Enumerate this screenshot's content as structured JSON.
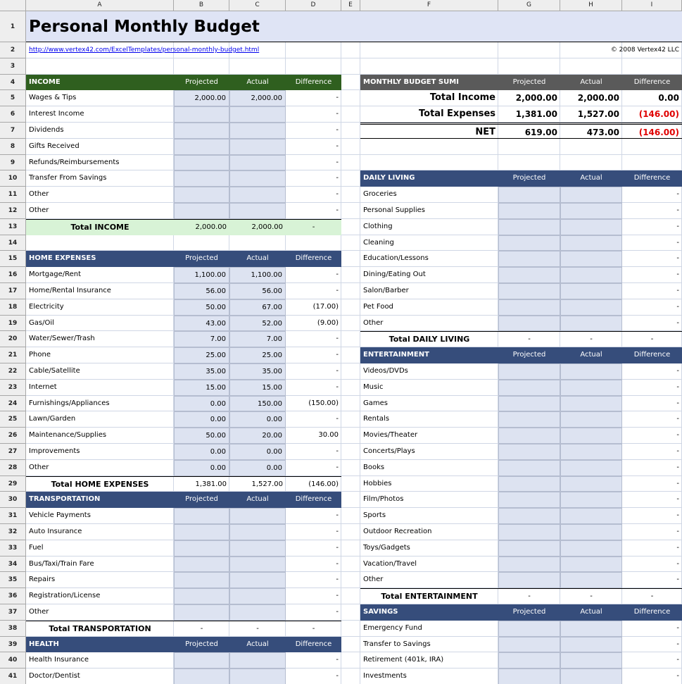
{
  "columns": [
    "A",
    "B",
    "C",
    "D",
    "E",
    "F",
    "G",
    "H",
    "I"
  ],
  "row_numbers": [
    1,
    2,
    3,
    4,
    5,
    6,
    7,
    8,
    9,
    10,
    11,
    12,
    13,
    14,
    15,
    16,
    17,
    18,
    19,
    20,
    21,
    22,
    23,
    24,
    25,
    26,
    27,
    28,
    29,
    30,
    31,
    32,
    33,
    34,
    35,
    36,
    37,
    38,
    39,
    40,
    41
  ],
  "title": "Personal Monthly Budget",
  "link": "http://www.vertex42.com/ExcelTemplates/personal-monthly-budget.html",
  "copyright": "© 2008 Vertex42 LLC",
  "summary": {
    "name": "MONTHLY BUDGET SUMI",
    "headers": [
      "Projected",
      "Actual",
      "Difference"
    ],
    "rows": [
      [
        "Total Income",
        "2,000.00",
        "2,000.00",
        "0.00"
      ],
      [
        "Total Expenses",
        "1,381.00",
        "1,527.00",
        "(146.00)"
      ],
      [
        "NET",
        "619.00",
        "473.00",
        "(146.00)"
      ]
    ]
  },
  "left": [
    {
      "name": "INCOME",
      "headers": [
        "Projected",
        "Actual",
        "Difference"
      ],
      "items": [
        [
          "Wages & Tips",
          "2,000.00",
          "2,000.00",
          "-"
        ],
        [
          "Interest Income",
          null,
          null,
          "-"
        ],
        [
          "Dividends",
          null,
          null,
          "-"
        ],
        [
          "Gifts Received",
          null,
          null,
          "-"
        ],
        [
          "Refunds/Reimbursements",
          null,
          null,
          "-"
        ],
        [
          "Transfer From Savings",
          null,
          null,
          "-"
        ],
        [
          "Other",
          null,
          null,
          "-"
        ],
        [
          "Other",
          null,
          null,
          "-"
        ]
      ],
      "total": [
        "Total INCOME",
        "2,000.00",
        "2,000.00",
        "-"
      ]
    },
    {
      "name": "HOME EXPENSES",
      "headers": [
        "Projected",
        "Actual",
        "Difference"
      ],
      "items": [
        [
          "Mortgage/Rent",
          "1,100.00",
          "1,100.00",
          "-"
        ],
        [
          "Home/Rental Insurance",
          "56.00",
          "56.00",
          "-"
        ],
        [
          "Electricity",
          "50.00",
          "67.00",
          "(17.00)"
        ],
        [
          "Gas/Oil",
          "43.00",
          "52.00",
          "(9.00)"
        ],
        [
          "Water/Sewer/Trash",
          "7.00",
          "7.00",
          "-"
        ],
        [
          "Phone",
          "25.00",
          "25.00",
          "-"
        ],
        [
          "Cable/Satellite",
          "35.00",
          "35.00",
          "-"
        ],
        [
          "Internet",
          "15.00",
          "15.00",
          "-"
        ],
        [
          "Furnishings/Appliances",
          "0.00",
          "150.00",
          "(150.00)"
        ],
        [
          "Lawn/Garden",
          "0.00",
          "0.00",
          "-"
        ],
        [
          "Maintenance/Supplies",
          "50.00",
          "20.00",
          "30.00"
        ],
        [
          "Improvements",
          "0.00",
          "0.00",
          "-"
        ],
        [
          "Other",
          "0.00",
          "0.00",
          "-"
        ]
      ],
      "total": [
        "Total HOME EXPENSES",
        "1,381.00",
        "1,527.00",
        "(146.00)"
      ]
    },
    {
      "name": "TRANSPORTATION",
      "headers": [
        "Projected",
        "Actual",
        "Difference"
      ],
      "items": [
        [
          "Vehicle Payments",
          null,
          null,
          "-"
        ],
        [
          "Auto Insurance",
          null,
          null,
          "-"
        ],
        [
          "Fuel",
          null,
          null,
          "-"
        ],
        [
          "Bus/Taxi/Train Fare",
          null,
          null,
          "-"
        ],
        [
          "Repairs",
          null,
          null,
          "-"
        ],
        [
          "Registration/License",
          null,
          null,
          "-"
        ],
        [
          "Other",
          null,
          null,
          "-"
        ]
      ],
      "total": [
        "Total TRANSPORTATION",
        "-",
        "-",
        "-"
      ]
    },
    {
      "name": "HEALTH",
      "headers": [
        "Projected",
        "Actual",
        "Difference"
      ],
      "items": [
        [
          "Health Insurance",
          null,
          null,
          "-"
        ],
        [
          "Doctor/Dentist",
          null,
          null,
          "-"
        ]
      ]
    }
  ],
  "right": [
    {
      "name": "DAILY LIVING",
      "headers": [
        "Projected",
        "Actual",
        "Difference"
      ],
      "items": [
        [
          "Groceries",
          null,
          null,
          "-"
        ],
        [
          "Personal Supplies",
          null,
          null,
          "-"
        ],
        [
          "Clothing",
          null,
          null,
          "-"
        ],
        [
          "Cleaning",
          null,
          null,
          "-"
        ],
        [
          "Education/Lessons",
          null,
          null,
          "-"
        ],
        [
          "Dining/Eating Out",
          null,
          null,
          "-"
        ],
        [
          "Salon/Barber",
          null,
          null,
          "-"
        ],
        [
          "Pet Food",
          null,
          null,
          "-"
        ],
        [
          "Other",
          null,
          null,
          "-"
        ]
      ],
      "total": [
        "Total DAILY LIVING",
        "-",
        "-",
        "-"
      ]
    },
    {
      "name": "ENTERTAINMENT",
      "headers": [
        "Projected",
        "Actual",
        "Difference"
      ],
      "items": [
        [
          "Videos/DVDs",
          null,
          null,
          "-"
        ],
        [
          "Music",
          null,
          null,
          "-"
        ],
        [
          "Games",
          null,
          null,
          "-"
        ],
        [
          "Rentals",
          null,
          null,
          "-"
        ],
        [
          "Movies/Theater",
          null,
          null,
          "-"
        ],
        [
          "Concerts/Plays",
          null,
          null,
          "-"
        ],
        [
          "Books",
          null,
          null,
          "-"
        ],
        [
          "Hobbies",
          null,
          null,
          "-"
        ],
        [
          "Film/Photos",
          null,
          null,
          "-"
        ],
        [
          "Sports",
          null,
          null,
          "-"
        ],
        [
          "Outdoor Recreation",
          null,
          null,
          "-"
        ],
        [
          "Toys/Gadgets",
          null,
          null,
          "-"
        ],
        [
          "Vacation/Travel",
          null,
          null,
          "-"
        ],
        [
          "Other",
          null,
          null,
          "-"
        ]
      ],
      "total": [
        "Total ENTERTAINMENT",
        "-",
        "-",
        "-"
      ]
    },
    {
      "name": "SAVINGS",
      "headers": [
        "Projected",
        "Actual",
        "Difference"
      ],
      "items": [
        [
          "Emergency Fund",
          null,
          null,
          "-"
        ],
        [
          "Transfer to Savings",
          null,
          null,
          "-"
        ],
        [
          "Retirement (401k, IRA)",
          null,
          null,
          "-"
        ],
        [
          "Investments",
          null,
          null,
          "-"
        ]
      ]
    }
  ]
}
